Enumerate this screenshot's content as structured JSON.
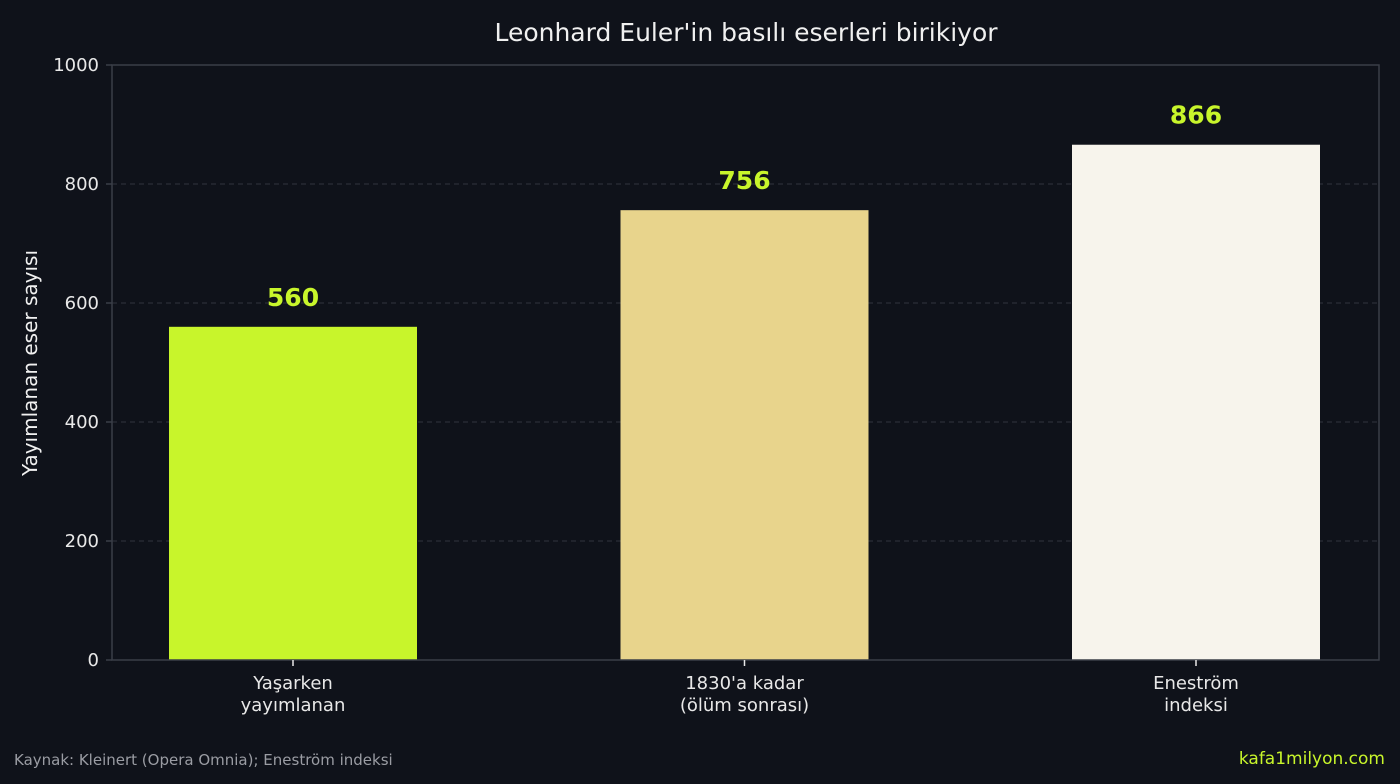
{
  "chart_data": {
    "type": "bar",
    "title": "Leonhard Euler'in basılı eserleri birikiyor",
    "ylabel": "Yayımlanan eser sayısı",
    "xlabel": "",
    "ylim": [
      0,
      1000
    ],
    "yticks": [
      0,
      200,
      400,
      600,
      800,
      1000
    ],
    "categories": [
      [
        "Yaşarken",
        "yayımlanan"
      ],
      [
        "1830'a kadar",
        "(ölüm sonrası)"
      ],
      [
        "Eneström",
        "indeksi"
      ]
    ],
    "values": [
      560,
      756,
      866
    ],
    "value_labels": [
      "560",
      "756",
      "866"
    ],
    "bar_colors": [
      "#c8f52b",
      "#e8d48c",
      "#f7f4ec"
    ],
    "grid": "horizontal dashed",
    "legend": "none"
  },
  "colors": {
    "background": "#0f121a",
    "axis": "#3a3e47",
    "grid": "#2a2e37",
    "accent": "#c8f52b"
  },
  "footer": {
    "source": "Kaynak: Kleinert (Opera Omnia); Eneström indeksi",
    "brand": "kafa1milyon.com"
  }
}
